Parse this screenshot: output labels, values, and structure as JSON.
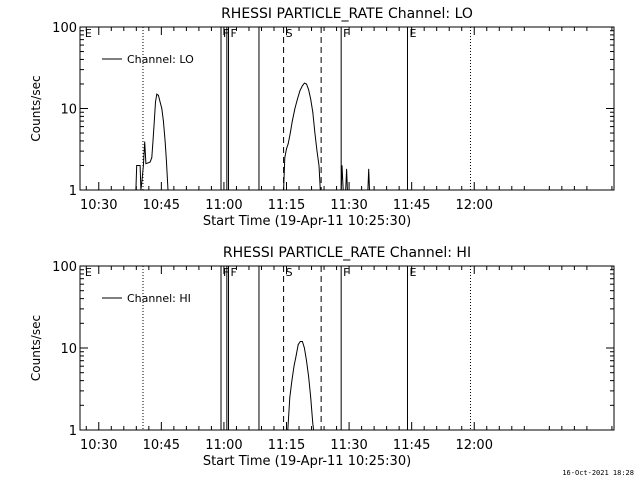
{
  "page": {
    "timestamp": "16-Oct-2021 18:28"
  },
  "chart_data": [
    {
      "type": "line",
      "title": "RHESSI PARTICLE_RATE Channel: LO",
      "xlabel": "Start Time (19-Apr-11 10:25:30)",
      "ylabel": "Counts/sec",
      "yscale": "log",
      "ylim": [
        1,
        100
      ],
      "xlim_min": [
        25.5,
        153.5
      ],
      "x_unit": "minutes after 10:00",
      "yticks": [
        {
          "v": 1,
          "label": "1"
        },
        {
          "v": 10,
          "label": "10"
        },
        {
          "v": 100,
          "label": "100"
        }
      ],
      "xticks": [
        {
          "v": 30,
          "label": "10:30"
        },
        {
          "v": 45,
          "label": "10:45"
        },
        {
          "v": 60,
          "label": "11:00"
        },
        {
          "v": 75,
          "label": "11:15"
        },
        {
          "v": 90,
          "label": "11:30"
        },
        {
          "v": 105,
          "label": "11:45"
        },
        {
          "v": 120,
          "label": "12:00"
        }
      ],
      "legend": {
        "label": "Channel: LO",
        "position": "top-left"
      },
      "markers": [
        {
          "x": 26.2,
          "label": "E",
          "style": "none"
        },
        {
          "x": 40.6,
          "label": "",
          "style": "dotted"
        },
        {
          "x": 59.3,
          "label": "F",
          "style": "solid"
        },
        {
          "x": 60.7,
          "label": "",
          "style": "solid"
        },
        {
          "x": 61.1,
          "label": "F",
          "style": "solid"
        },
        {
          "x": 68.4,
          "label": "",
          "style": "solid"
        },
        {
          "x": 74.3,
          "label": "S",
          "style": "dashed"
        },
        {
          "x": 83.3,
          "label": "",
          "style": "dashed"
        },
        {
          "x": 88.1,
          "label": "F",
          "style": "solid"
        },
        {
          "x": 104.0,
          "label": "E",
          "style": "solid"
        },
        {
          "x": 119.1,
          "label": "",
          "style": "dotted"
        }
      ],
      "series": [
        {
          "name": "Channel: LO",
          "points": [
            [
              38.9,
              1
            ],
            [
              39.1,
              2
            ],
            [
              39.9,
              2
            ],
            [
              40.1,
              1
            ],
            [
              40.3,
              1.2
            ],
            [
              40.7,
              2
            ],
            [
              41.0,
              3.9
            ],
            [
              41.3,
              2.1
            ],
            [
              42.3,
              2.2
            ],
            [
              42.7,
              2.5
            ],
            [
              43.0,
              4
            ],
            [
              43.3,
              7
            ],
            [
              43.6,
              12
            ],
            [
              43.9,
              15
            ],
            [
              44.3,
              14.5
            ],
            [
              44.7,
              12
            ],
            [
              45.1,
              10
            ],
            [
              45.5,
              7
            ],
            [
              45.9,
              4
            ],
            [
              46.2,
              2.3
            ],
            [
              46.6,
              1
            ],
            [
              74.3,
              1
            ],
            [
              74.6,
              2.5
            ],
            [
              75.0,
              3.2
            ],
            [
              75.4,
              3.7
            ],
            [
              75.9,
              5
            ],
            [
              76.4,
              7
            ],
            [
              77.0,
              10
            ],
            [
              77.6,
              13
            ],
            [
              78.2,
              16.5
            ],
            [
              78.8,
              19
            ],
            [
              79.3,
              20.5
            ],
            [
              79.8,
              20
            ],
            [
              80.3,
              17
            ],
            [
              80.8,
              13
            ],
            [
              81.3,
              9
            ],
            [
              81.8,
              5
            ],
            [
              82.3,
              3
            ],
            [
              82.8,
              2
            ],
            [
              83.1,
              1
            ],
            [
              88.1,
              1
            ],
            [
              88.3,
              2
            ],
            [
              88.6,
              1
            ],
            [
              89.2,
              1
            ],
            [
              89.4,
              1.8
            ],
            [
              89.6,
              1
            ],
            [
              94.5,
              1
            ],
            [
              94.7,
              1.8
            ],
            [
              94.9,
              1
            ]
          ]
        }
      ]
    },
    {
      "type": "line",
      "title": "RHESSI PARTICLE_RATE Channel: HI",
      "xlabel": "Start Time (19-Apr-11 10:25:30)",
      "ylabel": "Counts/sec",
      "yscale": "log",
      "ylim": [
        1,
        100
      ],
      "xlim_min": [
        25.5,
        153.5
      ],
      "x_unit": "minutes after 10:00",
      "yticks": [
        {
          "v": 1,
          "label": "1"
        },
        {
          "v": 10,
          "label": "10"
        },
        {
          "v": 100,
          "label": "100"
        }
      ],
      "xticks": [
        {
          "v": 30,
          "label": "10:30"
        },
        {
          "v": 45,
          "label": "10:45"
        },
        {
          "v": 60,
          "label": "11:00"
        },
        {
          "v": 75,
          "label": "11:15"
        },
        {
          "v": 90,
          "label": "11:30"
        },
        {
          "v": 105,
          "label": "11:45"
        },
        {
          "v": 120,
          "label": "12:00"
        }
      ],
      "legend": {
        "label": "Channel: HI",
        "position": "top-left"
      },
      "markers": [
        {
          "x": 26.2,
          "label": "E",
          "style": "none"
        },
        {
          "x": 40.6,
          "label": "",
          "style": "dotted"
        },
        {
          "x": 59.3,
          "label": "F",
          "style": "solid"
        },
        {
          "x": 60.7,
          "label": "",
          "style": "solid"
        },
        {
          "x": 61.1,
          "label": "F",
          "style": "solid"
        },
        {
          "x": 68.4,
          "label": "",
          "style": "solid"
        },
        {
          "x": 74.3,
          "label": "S",
          "style": "dashed"
        },
        {
          "x": 83.3,
          "label": "",
          "style": "dashed"
        },
        {
          "x": 88.1,
          "label": "F",
          "style": "solid"
        },
        {
          "x": 104.0,
          "label": "E",
          "style": "solid"
        },
        {
          "x": 119.1,
          "label": "",
          "style": "dotted"
        }
      ],
      "series": [
        {
          "name": "Channel: HI",
          "points": [
            [
              75.3,
              1
            ],
            [
              75.8,
              2.5
            ],
            [
              76.3,
              4
            ],
            [
              76.8,
              6
            ],
            [
              77.3,
              8
            ],
            [
              77.8,
              11
            ],
            [
              78.3,
              12
            ],
            [
              78.8,
              12
            ],
            [
              79.3,
              10
            ],
            [
              79.8,
              7
            ],
            [
              80.3,
              4.5
            ],
            [
              80.8,
              2.5
            ],
            [
              81.3,
              1.2
            ],
            [
              81.5,
              1
            ]
          ]
        }
      ]
    }
  ]
}
